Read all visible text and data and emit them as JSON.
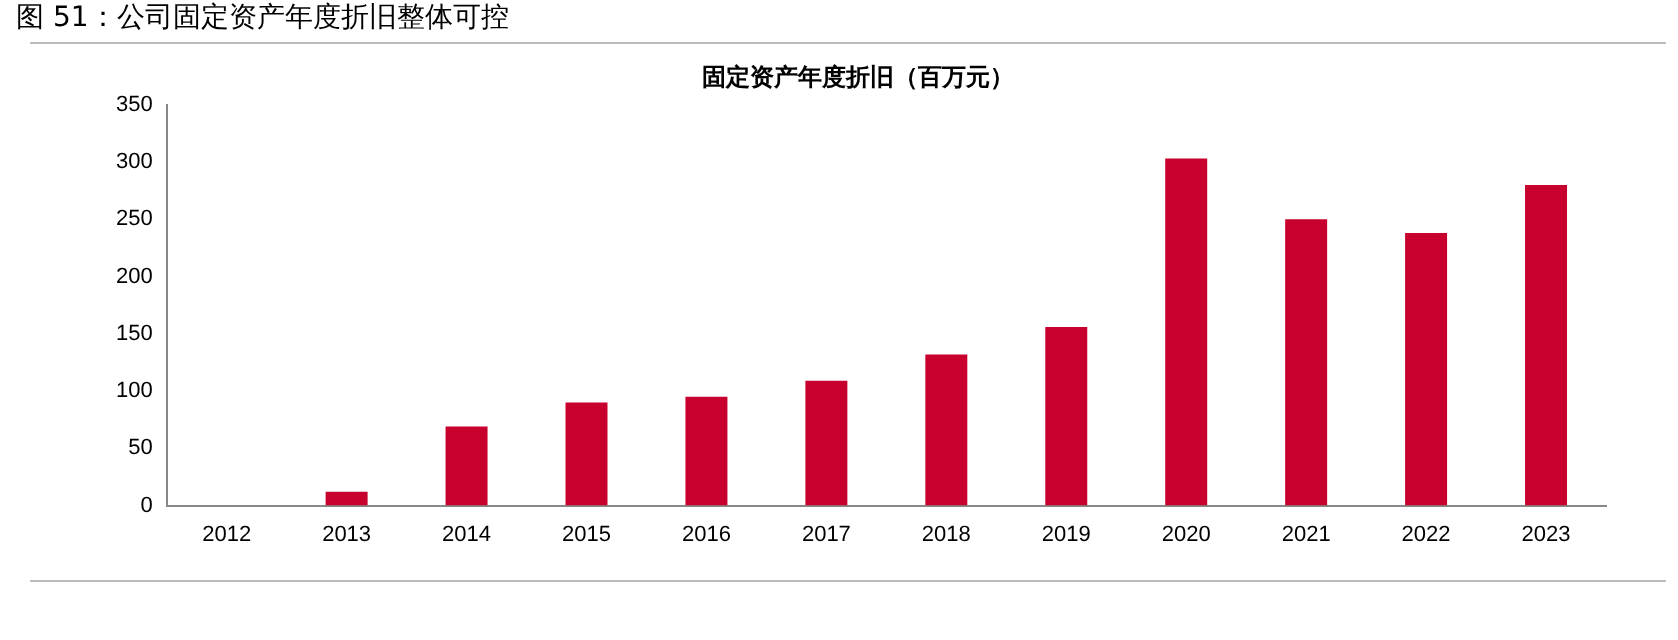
{
  "chart_data": {
    "type": "bar",
    "title": "图 51：公司固定资产年度折旧整体可控",
    "subtitle": "固定资产年度折旧（百万元）",
    "categories": [
      "2012",
      "2013",
      "2014",
      "2015",
      "2016",
      "2017",
      "2018",
      "2019",
      "2020",
      "2021",
      "2022",
      "2023"
    ],
    "values": [
      0,
      12,
      69,
      90,
      95,
      109,
      132,
      156,
      303,
      250,
      238,
      280
    ],
    "color": "#c8002d",
    "ylim": [
      0,
      350
    ],
    "yticks": [
      0,
      50,
      100,
      150,
      200,
      250,
      300,
      350
    ],
    "grid": false,
    "legend": false
  }
}
